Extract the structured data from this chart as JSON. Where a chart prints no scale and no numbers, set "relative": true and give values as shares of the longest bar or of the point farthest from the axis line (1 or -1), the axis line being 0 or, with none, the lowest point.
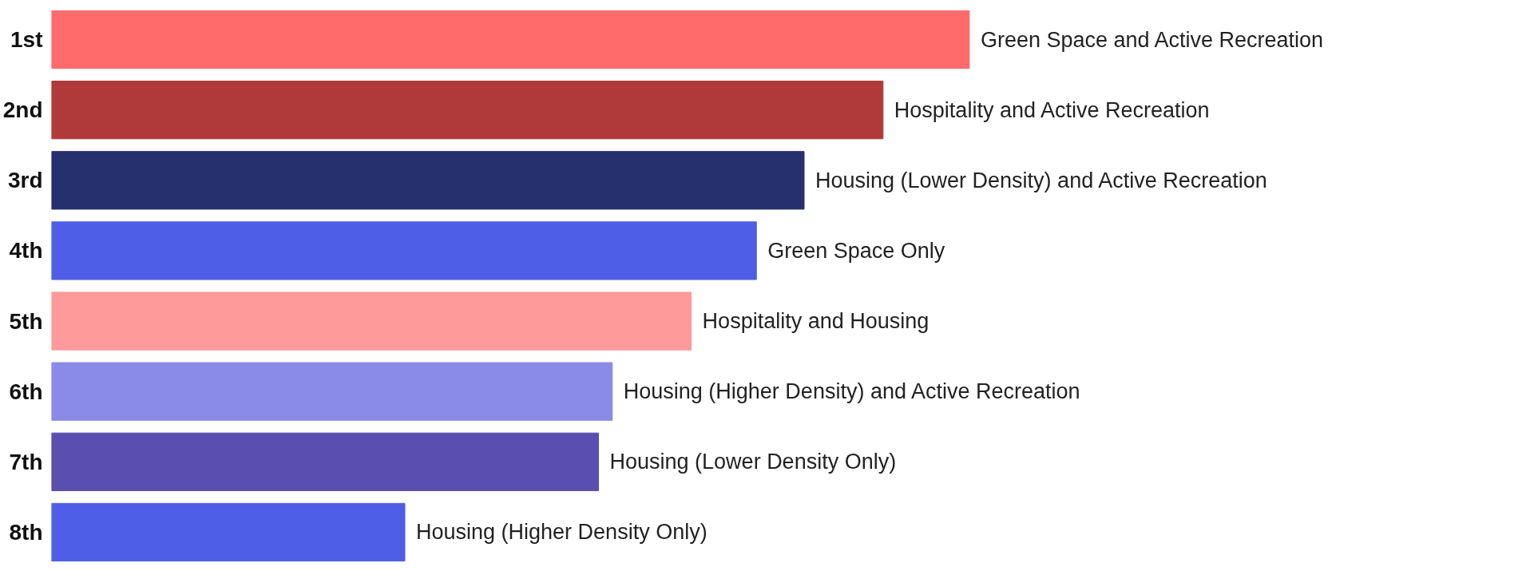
{
  "chart_data": {
    "type": "bar",
    "orientation": "horizontal",
    "relative": true,
    "categories": [
      "1st",
      "2nd",
      "3rd",
      "4th",
      "5th",
      "6th",
      "7th",
      "8th"
    ],
    "values": [
      1,
      0.906,
      0.82,
      0.768,
      0.697,
      0.611,
      0.596,
      0.385
    ],
    "colors": [
      "#ff6b6b",
      "#b03a3a",
      "#27306e",
      "#4f5ee6",
      "#ff9a9a",
      "#8a8ae8",
      "#5a4fb0",
      "#4f5ee6"
    ],
    "annotations": [
      {
        "text": "Green Space and Active Recreation",
        "x": 1,
        "y": "1st"
      },
      {
        "text": "Hospitality and Active Recreation",
        "x": 0.906,
        "y": "2nd"
      },
      {
        "text": "Housing (Lower Density) and Active Recreation",
        "x": 0.82,
        "y": "3rd"
      },
      {
        "text": "Green Space Only",
        "x": 0.768,
        "y": "4th"
      },
      {
        "text": "Hospitality and Housing",
        "x": 0.697,
        "y": "5th"
      },
      {
        "text": "Housing (Higher Density) and Active Recreation",
        "x": 0.611,
        "y": "6th"
      },
      {
        "text": "Housing (Lower Density Only)",
        "x": 0.596,
        "y": "7th"
      },
      {
        "text": "Housing (Higher Density Only)",
        "x": 0.385,
        "y": "8th"
      }
    ],
    "grid": false
  }
}
